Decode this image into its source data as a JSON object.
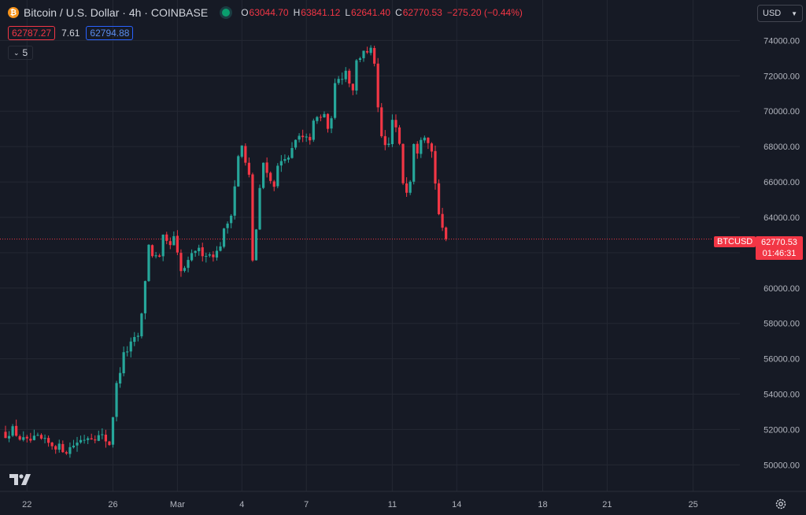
{
  "header": {
    "coin_glyph": "₿",
    "symbol_title": "Bitcoin / U.S. Dollar · 4h · COINBASE",
    "ohlc": [
      {
        "key": "O",
        "value": "63044.70"
      },
      {
        "key": "H",
        "value": "63841.12"
      },
      {
        "key": "L",
        "value": "62641.40"
      },
      {
        "key": "C",
        "value": "62770.53"
      }
    ],
    "change": "−275.20 (−0.44%)",
    "bid": "62787.27",
    "spread": "7.61",
    "ask": "62794.88",
    "indicators_count": "5",
    "currency": "USD"
  },
  "colors": {
    "up": "#26a69a",
    "down": "#f23645",
    "background": "#161a25",
    "grid": "#242833",
    "text": "#d1d4dc"
  },
  "current": {
    "symbol": "BTCUSD",
    "price": "62770.53",
    "countdown": "01:46:31"
  },
  "chart_data": {
    "type": "candlestick",
    "interval": "4h",
    "x_labels": [
      {
        "t": 6,
        "label": "22"
      },
      {
        "t": 30,
        "label": "26"
      },
      {
        "t": 48,
        "label": "Mar"
      },
      {
        "t": 66,
        "label": "4"
      },
      {
        "t": 84,
        "label": "7"
      },
      {
        "t": 108,
        "label": "11"
      },
      {
        "t": 126,
        "label": "14"
      },
      {
        "t": 150,
        "label": "18"
      },
      {
        "t": 168,
        "label": "21"
      },
      {
        "t": 192,
        "label": "25"
      }
    ],
    "y_ticks": [
      50000,
      52000,
      54000,
      56000,
      58000,
      60000,
      62000,
      64000,
      66000,
      68000,
      70000,
      72000,
      74000
    ],
    "y_tick_labels": [
      "50000.00",
      "52000.00",
      "54000.00",
      "56000.00",
      "58000.00",
      "60000.00",
      "62000.00",
      "64000.00",
      "66000.00",
      "68000.00",
      "70000.00",
      "72000.00",
      "74000.00"
    ],
    "ylim": [
      48500,
      75400
    ],
    "current_price": 62770.53,
    "close_anchors": [
      [
        0,
        51700
      ],
      [
        2,
        52000
      ],
      [
        4,
        51500
      ],
      [
        6,
        51300
      ],
      [
        9,
        51500
      ],
      [
        12,
        51200
      ],
      [
        15,
        51000
      ],
      [
        17,
        50800
      ],
      [
        20,
        51300
      ],
      [
        23,
        51600
      ],
      [
        27,
        51600
      ],
      [
        29,
        51200
      ],
      [
        30,
        52800
      ],
      [
        31,
        54500
      ],
      [
        33,
        56200
      ],
      [
        35,
        56800
      ],
      [
        37,
        57300
      ],
      [
        38,
        58400
      ],
      [
        39,
        60500
      ],
      [
        40,
        62400
      ],
      [
        41,
        61900
      ],
      [
        43,
        61600
      ],
      [
        44,
        62800
      ],
      [
        45,
        62500
      ],
      [
        46,
        62400
      ],
      [
        47,
        62800
      ],
      [
        49,
        60900
      ],
      [
        51,
        61400
      ],
      [
        53,
        62200
      ],
      [
        55,
        62000
      ],
      [
        57,
        61900
      ],
      [
        59,
        62000
      ],
      [
        60,
        62500
      ],
      [
        61,
        63200
      ],
      [
        62,
        63700
      ],
      [
        63,
        64300
      ],
      [
        64,
        65800
      ],
      [
        65,
        67400
      ],
      [
        66,
        68000
      ],
      [
        67,
        67000
      ],
      [
        68,
        66300
      ],
      [
        69,
        61600
      ],
      [
        70,
        63300
      ],
      [
        71,
        65500
      ],
      [
        72,
        67100
      ],
      [
        73,
        66700
      ],
      [
        74,
        66000
      ],
      [
        75,
        65900
      ],
      [
        76,
        66800
      ],
      [
        77,
        67200
      ],
      [
        78,
        67500
      ],
      [
        79,
        67200
      ],
      [
        80,
        67800
      ],
      [
        81,
        68300
      ],
      [
        82,
        68500
      ],
      [
        83,
        68400
      ],
      [
        84,
        68400
      ],
      [
        85,
        68500
      ],
      [
        86,
        69300
      ],
      [
        87,
        69600
      ],
      [
        88,
        69600
      ],
      [
        89,
        69900
      ],
      [
        90,
        68800
      ],
      [
        91,
        69800
      ],
      [
        92,
        71400
      ],
      [
        93,
        72000
      ],
      [
        94,
        72000
      ],
      [
        95,
        72300
      ],
      [
        96,
        71700
      ],
      [
        97,
        71300
      ],
      [
        98,
        72800
      ],
      [
        99,
        73100
      ],
      [
        100,
        73500
      ],
      [
        101,
        73200
      ],
      [
        102,
        73400
      ],
      [
        103,
        72800
      ],
      [
        104,
        70000
      ],
      [
        105,
        68500
      ],
      [
        106,
        67900
      ],
      [
        107,
        68100
      ],
      [
        108,
        69500
      ],
      [
        109,
        69000
      ],
      [
        110,
        68000
      ],
      [
        111,
        66000
      ],
      [
        112,
        65600
      ],
      [
        113,
        66200
      ],
      [
        114,
        68300
      ],
      [
        115,
        67800
      ],
      [
        116,
        68600
      ],
      [
        117,
        68700
      ],
      [
        118,
        68400
      ],
      [
        119,
        67700
      ],
      [
        120,
        66000
      ],
      [
        121,
        64200
      ],
      [
        122,
        63200
      ],
      [
        123,
        62770
      ]
    ],
    "volatility": 280,
    "up_color": "#26a69a",
    "down_color": "#f23645"
  }
}
